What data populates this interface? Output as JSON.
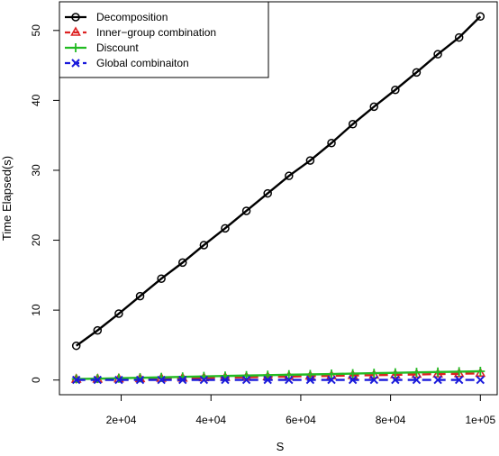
{
  "chart_data": {
    "type": "line",
    "xlabel": "S",
    "ylabel": "Time Elapsed(s)",
    "xlim": [
      10000,
      100000
    ],
    "ylim": [
      0,
      52
    ],
    "x_ticks": [
      20000,
      40000,
      60000,
      80000,
      100000
    ],
    "x_tick_labels": [
      "2e+04",
      "4e+04",
      "6e+04",
      "8e+04",
      "1e+05"
    ],
    "y_ticks": [
      0,
      10,
      20,
      30,
      40,
      50
    ],
    "y_tick_labels": [
      "0",
      "10",
      "20",
      "30",
      "40",
      "50"
    ],
    "legend_position": "top-left",
    "x": [
      10000,
      14737,
      19474,
      24211,
      28947,
      33684,
      38421,
      43158,
      47895,
      52632,
      57368,
      62105,
      66842,
      71579,
      76316,
      81053,
      85789,
      90526,
      95263,
      100000
    ],
    "series": [
      {
        "name": "Decomposition",
        "color": "#000000",
        "dash": "solid",
        "marker": "circle",
        "values": [
          4.9,
          7.1,
          9.5,
          12.0,
          14.5,
          16.8,
          19.3,
          21.7,
          24.2,
          26.7,
          29.2,
          31.4,
          33.9,
          36.6,
          39.1,
          41.5,
          44.0,
          46.6,
          49.0,
          52.0
        ]
      },
      {
        "name": "Inner−group combination",
        "color": "#dd2222",
        "dash": "dashed",
        "marker": "triangle",
        "values": [
          0.1,
          0.12,
          0.15,
          0.18,
          0.22,
          0.26,
          0.3,
          0.35,
          0.4,
          0.45,
          0.5,
          0.55,
          0.6,
          0.65,
          0.7,
          0.75,
          0.8,
          0.85,
          0.9,
          0.95
        ]
      },
      {
        "name": "Discount",
        "color": "#22bb22",
        "dash": "solid",
        "marker": "plus",
        "values": [
          0.15,
          0.2,
          0.26,
          0.32,
          0.38,
          0.45,
          0.52,
          0.58,
          0.64,
          0.7,
          0.76,
          0.8,
          0.86,
          0.92,
          0.98,
          1.04,
          1.1,
          1.15,
          1.2,
          1.25
        ]
      },
      {
        "name": "Global combinaiton",
        "color": "#1a1adb",
        "dash": "dashed",
        "marker": "x",
        "values": [
          0.02,
          0.02,
          0.02,
          0.02,
          0.02,
          0.02,
          0.02,
          0.02,
          0.02,
          0.02,
          0.02,
          0.02,
          0.02,
          0.02,
          0.02,
          0.02,
          0.02,
          0.02,
          0.02,
          0.02
        ]
      }
    ]
  }
}
